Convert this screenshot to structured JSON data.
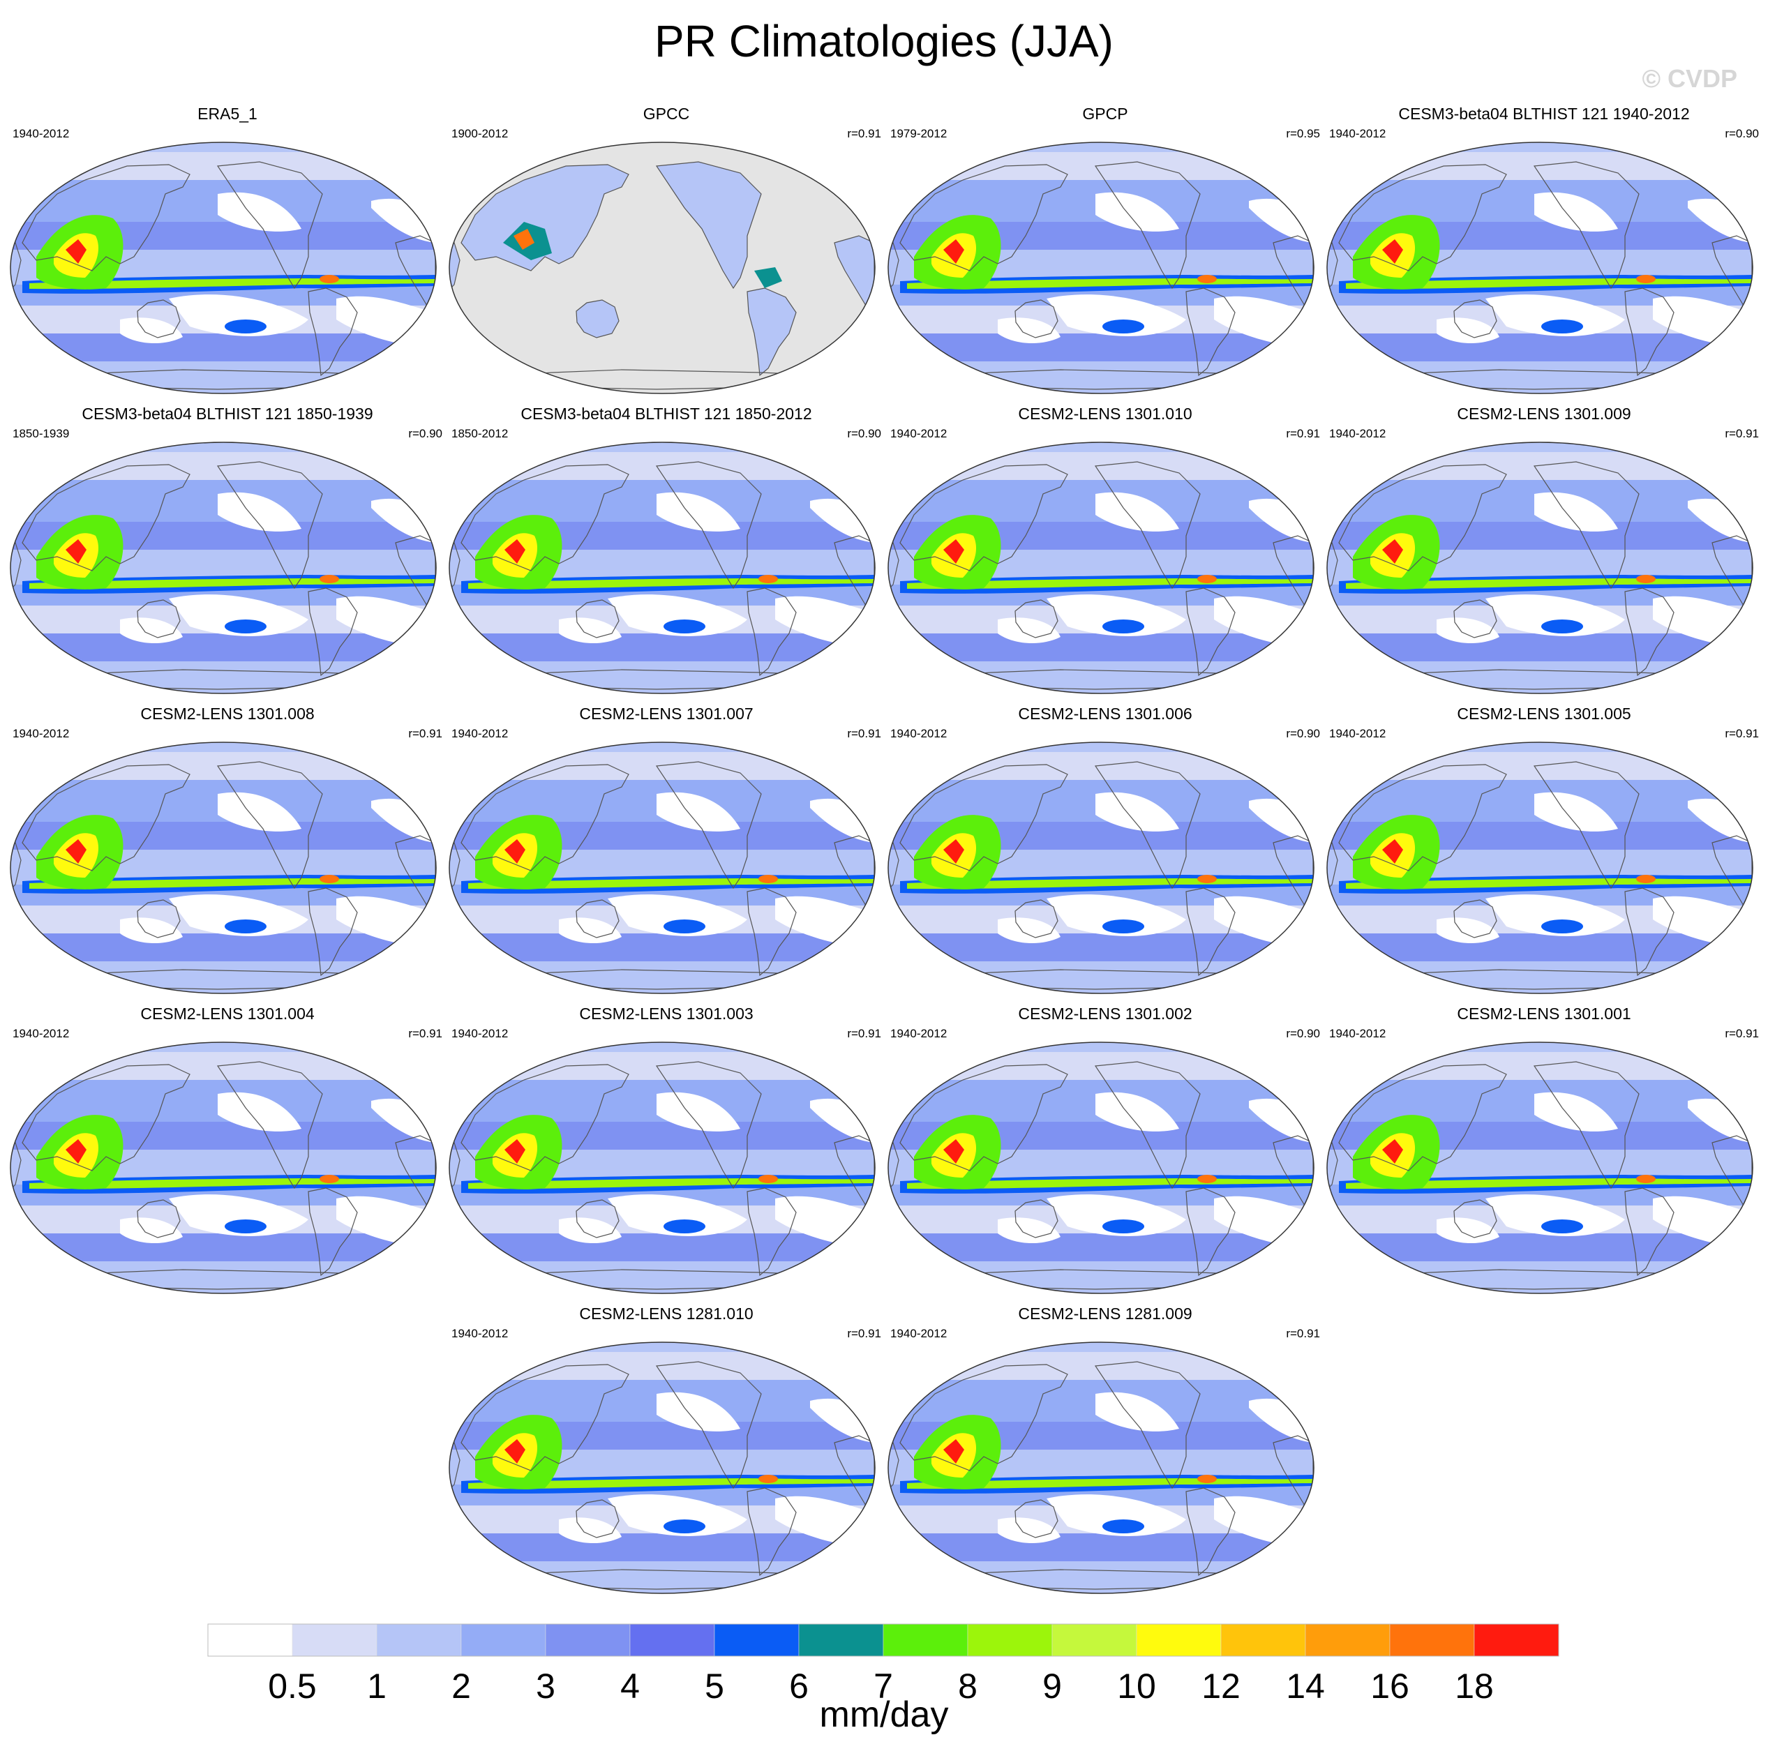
{
  "chart_data": {
    "type": "heatmap",
    "title": "PR Climatologies (JJA)",
    "watermark": "© CVDP",
    "projection": "Robinson, Pacific-centred global maps",
    "colorbar": {
      "label": "mm/day",
      "levels": [
        "0.5",
        "1",
        "2",
        "3",
        "4",
        "5",
        "6",
        "7",
        "8",
        "9",
        "10",
        "12",
        "14",
        "16",
        "18"
      ],
      "colors": [
        "#ffffff",
        "#d7dcf6",
        "#b5c5f7",
        "#94acf6",
        "#7f92f2",
        "#6470f0",
        "#0a5cf5",
        "#0b9190",
        "#5cef0b",
        "#9cf50b",
        "#c5f83c",
        "#fffb0d",
        "#ffc40b",
        "#ff9d0b",
        "#ff730c",
        "#ff1b0f"
      ]
    },
    "panels": [
      {
        "title": "ERA5_1",
        "period": "1940-2012",
        "r": ""
      },
      {
        "title": "GPCC",
        "period": "1900-2012",
        "r": "r=0.91",
        "land_only": true
      },
      {
        "title": "GPCP",
        "period": "1979-2012",
        "r": "r=0.95"
      },
      {
        "title": "CESM3-beta04 BLTHIST 121 1940-2012",
        "period": "1940-2012",
        "r": "r=0.90"
      },
      {
        "title": "CESM3-beta04 BLTHIST 121 1850-1939",
        "period": "1850-1939",
        "r": "r=0.90"
      },
      {
        "title": "CESM3-beta04 BLTHIST 121 1850-2012",
        "period": "1850-2012",
        "r": "r=0.90"
      },
      {
        "title": "CESM2-LENS 1301.010",
        "period": "1940-2012",
        "r": "r=0.91"
      },
      {
        "title": "CESM2-LENS 1301.009",
        "period": "1940-2012",
        "r": "r=0.91"
      },
      {
        "title": "CESM2-LENS 1301.008",
        "period": "1940-2012",
        "r": "r=0.91"
      },
      {
        "title": "CESM2-LENS 1301.007",
        "period": "1940-2012",
        "r": "r=0.91"
      },
      {
        "title": "CESM2-LENS 1301.006",
        "period": "1940-2012",
        "r": "r=0.90"
      },
      {
        "title": "CESM2-LENS 1301.005",
        "period": "1940-2012",
        "r": "r=0.91"
      },
      {
        "title": "CESM2-LENS 1301.004",
        "period": "1940-2012",
        "r": "r=0.91"
      },
      {
        "title": "CESM2-LENS 1301.003",
        "period": "1940-2012",
        "r": "r=0.91"
      },
      {
        "title": "CESM2-LENS 1301.002",
        "period": "1940-2012",
        "r": "r=0.90"
      },
      {
        "title": "CESM2-LENS 1301.001",
        "period": "1940-2012",
        "r": "r=0.91"
      },
      {
        "title": "CESM2-LENS 1281.010",
        "period": "1940-2012",
        "r": "r=0.91"
      },
      {
        "title": "CESM2-LENS 1281.009",
        "period": "1940-2012",
        "r": "r=0.91"
      }
    ]
  }
}
